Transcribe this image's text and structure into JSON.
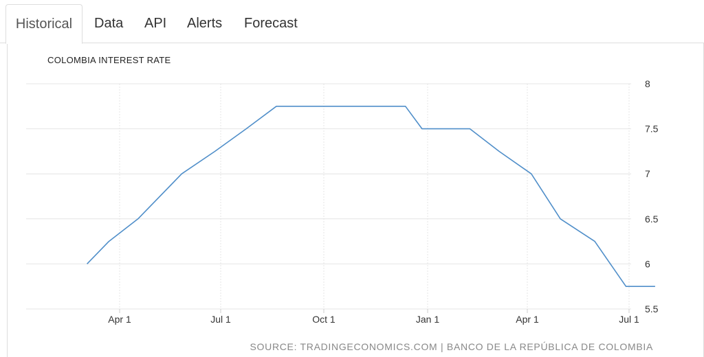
{
  "tabs": [
    {
      "label": "Historical",
      "active": true
    },
    {
      "label": "Data",
      "active": false
    },
    {
      "label": "API",
      "active": false
    },
    {
      "label": "Alerts",
      "active": false
    },
    {
      "label": "Forecast",
      "active": false
    }
  ],
  "chart_data": {
    "type": "line",
    "title": "COLOMBIA INTEREST RATE",
    "xlabel": "",
    "ylabel": "",
    "x_ticks": [
      "Apr 1",
      "Jul 1",
      "Oct 1",
      "Jan 1",
      "Apr 1",
      "Jul 1"
    ],
    "y_ticks": [
      "5.5",
      "6",
      "6.5",
      "7",
      "7.5",
      "8"
    ],
    "ylim": [
      5.5,
      8
    ],
    "grid": true,
    "y_axis_side": "right",
    "line_color": "#4f8ec9",
    "series": [
      {
        "x": [
          "2016-01-29",
          "2016-02-19",
          "2016-03-18",
          "2016-04-29",
          "2016-05-31",
          "2016-06-30",
          "2016-07-29",
          "2016-08-31",
          "2016-09-30",
          "2016-10-31",
          "2016-11-30",
          "2016-12-16",
          "2016-12-30",
          "2017-01-31",
          "2017-02-28",
          "2017-03-31",
          "2017-04-28",
          "2017-05-31",
          "2017-06-30",
          "2017-07-28"
        ],
        "values": [
          6,
          6.25,
          6.5,
          7,
          7.25,
          7.5,
          7.75,
          7.75,
          7.75,
          7.75,
          7.75,
          7.5,
          7.5,
          7.5,
          7.25,
          7,
          6.5,
          6.25,
          5.75,
          5.75
        ]
      }
    ]
  },
  "source": "SOURCE: TRADINGECONOMICS.COM | BANCO DE LA REPÚBLICA DE COLOMBIA"
}
